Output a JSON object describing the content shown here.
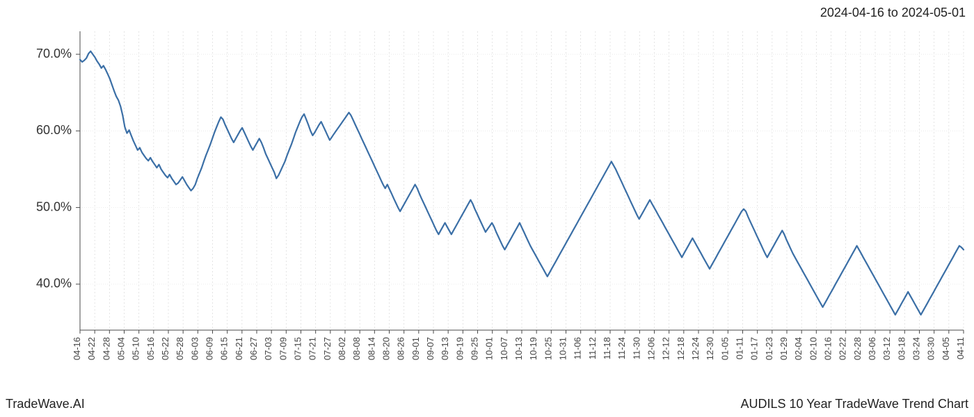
{
  "header": {
    "date_range": "2024-04-16 to 2024-05-01"
  },
  "footer": {
    "brand": "TradeWave.AI",
    "title": "AUDILS 10 Year TradeWave Trend Chart"
  },
  "chart": {
    "type": "line",
    "background_color": "#ffffff",
    "line_color": "#3b6fa6",
    "line_width": 2.2,
    "highlight_band": {
      "fill": "#dfeedd",
      "stroke": "#9fc49a",
      "x_start_label": "04-16",
      "x_end_label": "05-01"
    },
    "grid": {
      "minor_x_color": "#d9d9d9",
      "minor_x_dash": "2,3",
      "major_y_color": "#e6e6e6",
      "major_y_dash": "1,2"
    },
    "axis_color": "#4a4a4a",
    "y_axis": {
      "min": 34,
      "max": 73,
      "ticks": [
        {
          "v": 40,
          "label": "40.0%"
        },
        {
          "v": 50,
          "label": "50.0%"
        },
        {
          "v": 60,
          "label": "60.0%"
        },
        {
          "v": 70,
          "label": "70.0%"
        }
      ]
    },
    "x_labels": [
      "04-16",
      "04-22",
      "04-28",
      "05-04",
      "05-10",
      "05-16",
      "05-22",
      "05-28",
      "06-03",
      "06-09",
      "06-15",
      "06-21",
      "06-27",
      "07-03",
      "07-09",
      "07-15",
      "07-21",
      "07-27",
      "08-02",
      "08-08",
      "08-14",
      "08-20",
      "08-26",
      "09-01",
      "09-07",
      "09-13",
      "09-19",
      "09-25",
      "10-01",
      "10-07",
      "10-13",
      "10-19",
      "10-25",
      "10-31",
      "11-06",
      "11-12",
      "11-18",
      "11-24",
      "11-30",
      "12-06",
      "12-12",
      "12-18",
      "12-24",
      "12-30",
      "01-05",
      "01-11",
      "01-17",
      "01-23",
      "01-29",
      "02-04",
      "02-10",
      "02-16",
      "02-22",
      "02-28",
      "03-06",
      "03-12",
      "03-18",
      "03-24",
      "03-30",
      "04-05",
      "04-11"
    ],
    "series": [
      69.3,
      69.0,
      69.2,
      69.5,
      70.1,
      70.4,
      70.0,
      69.6,
      69.1,
      68.7,
      68.2,
      68.5,
      68.0,
      67.4,
      66.8,
      66.0,
      65.2,
      64.5,
      64.0,
      63.2,
      62.0,
      60.5,
      59.7,
      60.1,
      59.4,
      58.7,
      58.1,
      57.5,
      57.8,
      57.2,
      56.8,
      56.4,
      56.1,
      56.5,
      56.0,
      55.6,
      55.2,
      55.6,
      55.0,
      54.6,
      54.2,
      53.9,
      54.3,
      53.8,
      53.4,
      53.0,
      53.2,
      53.6,
      54.0,
      53.5,
      53.0,
      52.6,
      52.2,
      52.5,
      53.0,
      53.8,
      54.5,
      55.2,
      56.0,
      56.8,
      57.5,
      58.2,
      59.0,
      59.8,
      60.5,
      61.2,
      61.8,
      61.5,
      60.8,
      60.2,
      59.6,
      59.0,
      58.5,
      59.0,
      59.5,
      60.0,
      60.4,
      59.8,
      59.2,
      58.6,
      58.0,
      57.5,
      58.0,
      58.5,
      59.0,
      58.5,
      57.8,
      57.0,
      56.4,
      55.8,
      55.2,
      54.6,
      53.8,
      54.2,
      54.8,
      55.4,
      56.0,
      56.8,
      57.5,
      58.2,
      59.0,
      59.8,
      60.5,
      61.2,
      61.8,
      62.2,
      61.5,
      60.8,
      60.0,
      59.4,
      59.8,
      60.3,
      60.8,
      61.2,
      60.6,
      60.0,
      59.4,
      58.8,
      59.2,
      59.6,
      60.0,
      60.4,
      60.8,
      61.2,
      61.6,
      62.0,
      62.4,
      62.0,
      61.4,
      60.8,
      60.2,
      59.6,
      59.0,
      58.4,
      57.8,
      57.2,
      56.6,
      56.0,
      55.4,
      54.8,
      54.2,
      53.6,
      53.0,
      52.5,
      53.0,
      52.4,
      51.8,
      51.2,
      50.6,
      50.0,
      49.5,
      50.0,
      50.5,
      51.0,
      51.5,
      52.0,
      52.5,
      53.0,
      52.5,
      51.8,
      51.2,
      50.6,
      50.0,
      49.4,
      48.8,
      48.2,
      47.6,
      47.0,
      46.5,
      47.0,
      47.5,
      48.0,
      47.5,
      47.0,
      46.5,
      47.0,
      47.5,
      48.0,
      48.5,
      49.0,
      49.5,
      50.0,
      50.5,
      51.0,
      50.5,
      49.8,
      49.2,
      48.6,
      48.0,
      47.4,
      46.8,
      47.2,
      47.6,
      48.0,
      47.5,
      46.8,
      46.2,
      45.6,
      45.0,
      44.5,
      45.0,
      45.5,
      46.0,
      46.5,
      47.0,
      47.5,
      48.0,
      47.4,
      46.8,
      46.2,
      45.6,
      45.0,
      44.5,
      44.0,
      43.5,
      43.0,
      42.5,
      42.0,
      41.5,
      41.0,
      41.5,
      42.0,
      42.5,
      43.0,
      43.5,
      44.0,
      44.5,
      45.0,
      45.5,
      46.0,
      46.5,
      47.0,
      47.5,
      48.0,
      48.5,
      49.0,
      49.5,
      50.0,
      50.5,
      51.0,
      51.5,
      52.0,
      52.5,
      53.0,
      53.5,
      54.0,
      54.5,
      55.0,
      55.5,
      56.0,
      55.5,
      55.0,
      54.4,
      53.8,
      53.2,
      52.6,
      52.0,
      51.4,
      50.8,
      50.2,
      49.6,
      49.0,
      48.5,
      49.0,
      49.5,
      50.0,
      50.5,
      51.0,
      50.5,
      50.0,
      49.5,
      49.0,
      48.5,
      48.0,
      47.5,
      47.0,
      46.5,
      46.0,
      45.5,
      45.0,
      44.5,
      44.0,
      43.5,
      44.0,
      44.5,
      45.0,
      45.5,
      46.0,
      45.5,
      45.0,
      44.5,
      44.0,
      43.5,
      43.0,
      42.5,
      42.0,
      42.5,
      43.0,
      43.5,
      44.0,
      44.5,
      45.0,
      45.5,
      46.0,
      46.5,
      47.0,
      47.5,
      48.0,
      48.5,
      49.0,
      49.5,
      49.8,
      49.5,
      48.8,
      48.2,
      47.6,
      47.0,
      46.4,
      45.8,
      45.2,
      44.6,
      44.0,
      43.5,
      44.0,
      44.5,
      45.0,
      45.5,
      46.0,
      46.5,
      47.0,
      46.5,
      45.8,
      45.2,
      44.6,
      44.0,
      43.5,
      43.0,
      42.5,
      42.0,
      41.5,
      41.0,
      40.5,
      40.0,
      39.5,
      39.0,
      38.5,
      38.0,
      37.5,
      37.0,
      37.5,
      38.0,
      38.5,
      39.0,
      39.5,
      40.0,
      40.5,
      41.0,
      41.5,
      42.0,
      42.5,
      43.0,
      43.5,
      44.0,
      44.5,
      45.0,
      44.5,
      44.0,
      43.5,
      43.0,
      42.5,
      42.0,
      41.5,
      41.0,
      40.5,
      40.0,
      39.5,
      39.0,
      38.5,
      38.0,
      37.5,
      37.0,
      36.5,
      36.0,
      36.5,
      37.0,
      37.5,
      38.0,
      38.5,
      39.0,
      38.5,
      38.0,
      37.5,
      37.0,
      36.5,
      36.0,
      36.5,
      37.0,
      37.5,
      38.0,
      38.5,
      39.0,
      39.5,
      40.0,
      40.5,
      41.0,
      41.5,
      42.0,
      42.5,
      43.0,
      43.5,
      44.0,
      44.5,
      45.0,
      44.8,
      44.5
    ]
  }
}
